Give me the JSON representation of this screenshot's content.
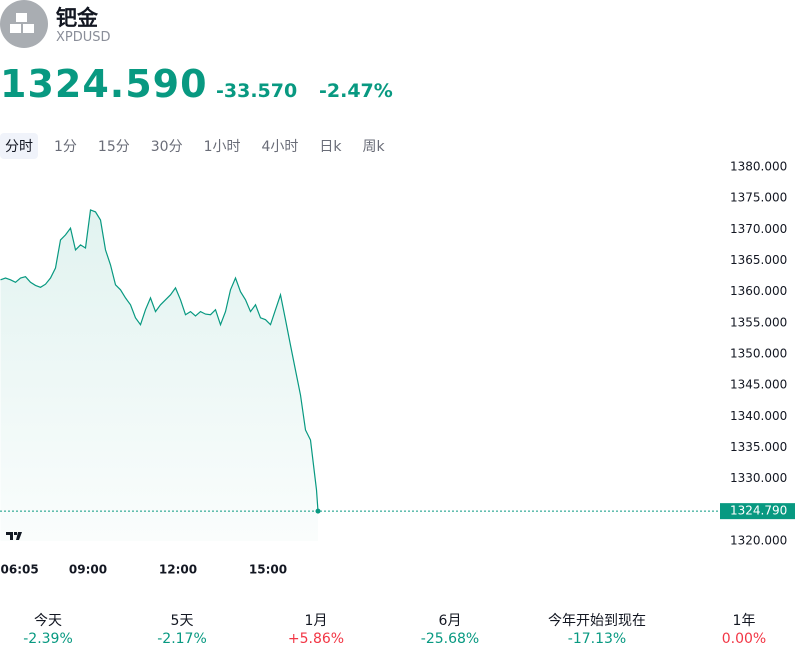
{
  "header": {
    "name": "钯金",
    "symbol": "XPDUSD",
    "price": "1324.590",
    "change": "-33.570",
    "change_percent": "-2.47%"
  },
  "tabs": {
    "items": [
      "分时",
      "1分",
      "15分",
      "30分",
      "1小时",
      "4小时",
      "日k",
      "周k"
    ],
    "active": 0
  },
  "chart_data": {
    "type": "line",
    "color": "#089981",
    "x": [
      365,
      375,
      385,
      395,
      405,
      415,
      425,
      435,
      445,
      455,
      465,
      475,
      485,
      495,
      505,
      515,
      525,
      535,
      545,
      555,
      565,
      575,
      585,
      595,
      605,
      615,
      625,
      635,
      645,
      655,
      665,
      675,
      685,
      695,
      705,
      715,
      725,
      735,
      745,
      755,
      765,
      775,
      785,
      795,
      805,
      815,
      825,
      835,
      845,
      855,
      865,
      875,
      885,
      895,
      905,
      915,
      925,
      935,
      945,
      955,
      965,
      975,
      985,
      991,
      997,
      1000
    ],
    "values": [
      1361.9,
      1362.2,
      1361.9,
      1361.5,
      1362.2,
      1362.4,
      1361.5,
      1361.0,
      1360.7,
      1361.2,
      1362.2,
      1363.8,
      1368.3,
      1369.1,
      1370.2,
      1366.7,
      1367.5,
      1367.0,
      1373.1,
      1372.8,
      1371.5,
      1366.7,
      1364.3,
      1361.1,
      1360.3,
      1359.0,
      1357.9,
      1355.8,
      1354.7,
      1357.1,
      1359.0,
      1356.8,
      1357.9,
      1358.7,
      1359.5,
      1360.6,
      1358.7,
      1356.3,
      1356.8,
      1356.1,
      1356.8,
      1356.4,
      1356.3,
      1357.1,
      1354.7,
      1356.8,
      1360.3,
      1362.2,
      1360.0,
      1358.7,
      1356.8,
      1357.9,
      1355.8,
      1355.5,
      1354.7,
      1357.1,
      1359.5,
      1355.5,
      1351.4,
      1347.4,
      1343.4,
      1337.8,
      1336.2,
      1332.2,
      1328.2,
      1324.79
    ],
    "last_value_label": "1324.790",
    "xlim": [
      364,
      1804
    ],
    "xticks": [
      {
        "value": 365,
        "label": "06:05"
      },
      {
        "value": 540,
        "label": "09:00"
      },
      {
        "value": 720,
        "label": "12:00"
      },
      {
        "value": 900,
        "label": "15:00"
      }
    ],
    "ylim": [
      1320,
      1380
    ],
    "yticks": [
      {
        "value": 1320,
        "label": "1320.000"
      },
      {
        "value": 1325,
        "label": "1325.000"
      },
      {
        "value": 1330,
        "label": "1330.000"
      },
      {
        "value": 1335,
        "label": "1335.000"
      },
      {
        "value": 1340,
        "label": "1340.000"
      },
      {
        "value": 1345,
        "label": "1345.000"
      },
      {
        "value": 1350,
        "label": "1350.000"
      },
      {
        "value": 1355,
        "label": "1355.000"
      },
      {
        "value": 1360,
        "label": "1360.000"
      },
      {
        "value": 1365,
        "label": "1365.000"
      },
      {
        "value": 1370,
        "label": "1370.000"
      },
      {
        "value": 1375,
        "label": "1375.000"
      },
      {
        "value": 1380,
        "label": "1380.000"
      }
    ]
  },
  "performance": [
    {
      "label": "今天",
      "value": "-2.39%",
      "color": "#089981"
    },
    {
      "label": "5天",
      "value": "-2.17%",
      "color": "#089981"
    },
    {
      "label": "1月",
      "value": "+5.86%",
      "color": "#f23645"
    },
    {
      "label": "6月",
      "value": "-25.68%",
      "color": "#089981"
    },
    {
      "label": "今年开始到现在",
      "value": "-17.13%",
      "color": "#089981"
    },
    {
      "label": "1年",
      "value": "0.00%",
      "color": "#f23645"
    }
  ]
}
